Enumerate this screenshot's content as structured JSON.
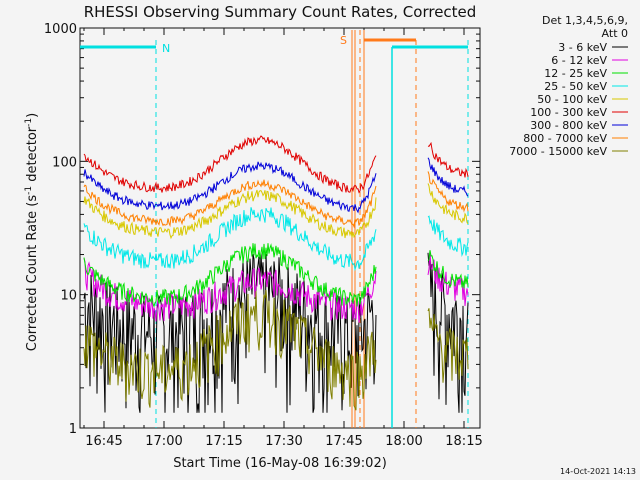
{
  "chart_data": {
    "type": "line",
    "title": "RHESSI Observing Summary Count Rates, Corrected",
    "xlabel": "Start Time (16-May-08 16:39:02)",
    "ylabel_main": "Corrected Count Rate (s",
    "ylabel_sup1": "-1",
    "ylabel_mid": " detector",
    "ylabel_sup2": "-1",
    "ylabel_end": ")",
    "yscale": "log",
    "ylim": [
      1,
      1000
    ],
    "xlim": [
      "16:39",
      "18:19"
    ],
    "x_ticks": [
      "16:45",
      "17:00",
      "17:15",
      "17:30",
      "17:45",
      "18:00",
      "18:15"
    ],
    "y_ticks": [
      "1",
      "10",
      "100",
      "1000"
    ],
    "legend_header": [
      "Det 1,3,4,5,6,9,",
      "Att 0"
    ],
    "footer_date": "14-Oct-2021 14:13",
    "series": [
      {
        "name": "3 - 6 keV",
        "color": "#000000"
      },
      {
        "name": "6 - 12 keV",
        "color": "#e000e0"
      },
      {
        "name": "12 - 25 keV",
        "color": "#00e000"
      },
      {
        "name": "25 - 50 keV",
        "color": "#00e8e8"
      },
      {
        "name": "50 - 100 keV",
        "color": "#d8c800"
      },
      {
        "name": "100 - 300 keV",
        "color": "#e00000"
      },
      {
        "name": "300 - 800 keV",
        "color": "#0000d8"
      },
      {
        "name": "800 - 7000 keV",
        "color": "#ff8000"
      },
      {
        "name": "7000 - 15000 keV",
        "color": "#808000"
      }
    ],
    "annotations": {
      "night_label": "N",
      "saa_label": "S"
    }
  }
}
